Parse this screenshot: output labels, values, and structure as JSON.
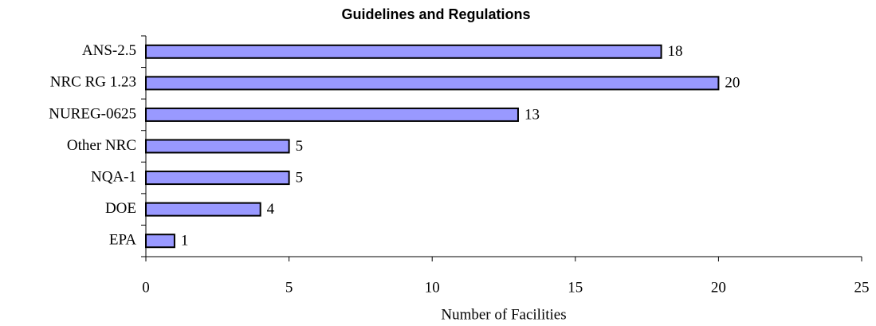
{
  "chart_data": {
    "type": "bar",
    "orientation": "horizontal",
    "title": "Guidelines and Regulations",
    "x_label": "Number of Facilities",
    "categories": [
      "ANS-2.5",
      "NRC RG 1.23",
      "NUREG-0625",
      "Other NRC",
      "NQA-1",
      "DOE",
      "EPA"
    ],
    "values": [
      18,
      20,
      13,
      5,
      5,
      4,
      1
    ],
    "color": "#9999ff",
    "xlim": [
      0,
      25
    ],
    "xticks": [
      0,
      5,
      10,
      15,
      20,
      25
    ],
    "grid": false
  }
}
